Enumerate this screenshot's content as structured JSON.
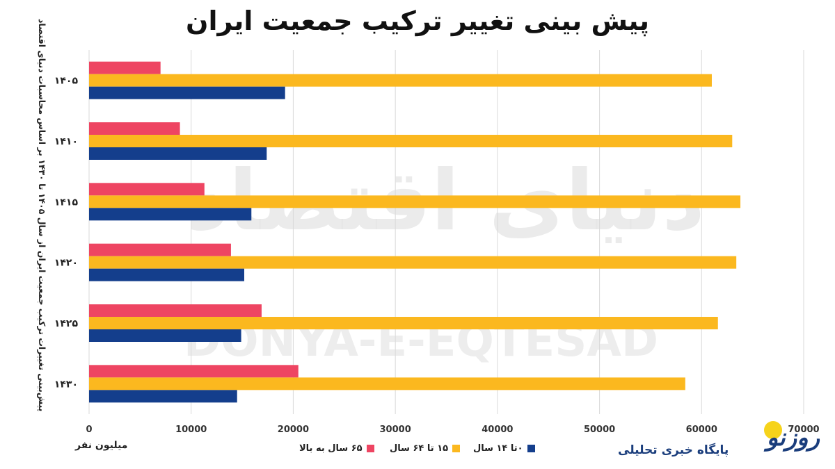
{
  "chart_data": {
    "type": "bar",
    "orientation": "horizontal",
    "title": "پیش بینی تغییر ترکیب جمعیت ایران",
    "ylabel": "پیش‌بینی تغییرات ترکیب جمعیت ایران از سال ۱۴۰۵ تا ۱۴۳۰ بر اساس محاسبات دنیای اقتصاد",
    "xlabel": "میلیون نفر",
    "categories": [
      "۱۴۰۵",
      "۱۴۱۰",
      "۱۴۱۵",
      "۱۴۲۰",
      "۱۴۲۵",
      "۱۴۳۰"
    ],
    "series": [
      {
        "name": "۶۵ سال به بالا",
        "color": "#ee4562",
        "values": [
          7000,
          8900,
          11300,
          13900,
          16900,
          20500
        ]
      },
      {
        "name": "۱۵ تا ۶۴ سال",
        "color": "#fbb81f",
        "values": [
          61000,
          63000,
          63800,
          63400,
          61600,
          58400
        ]
      },
      {
        "name": "۰تا ۱۴ سال",
        "color": "#143e8c",
        "values": [
          19200,
          17400,
          15900,
          15200,
          14900,
          14500
        ]
      }
    ],
    "xlim": [
      0,
      70000
    ],
    "xticks": [
      "0",
      "10000",
      "20000",
      "30000",
      "40000",
      "50000",
      "60000",
      "70000"
    ],
    "grid": true,
    "legend_position": "bottom"
  },
  "watermark": {
    "text": "DONYA-E-EQTESAD",
    "script_text": "دنیای اقتصاد"
  },
  "logo": {
    "name": "روزنو",
    "tagline": "پایگاه خبری تحلیلی",
    "accent_color": "#f6d31b",
    "brand_color": "#1a3d7c"
  }
}
